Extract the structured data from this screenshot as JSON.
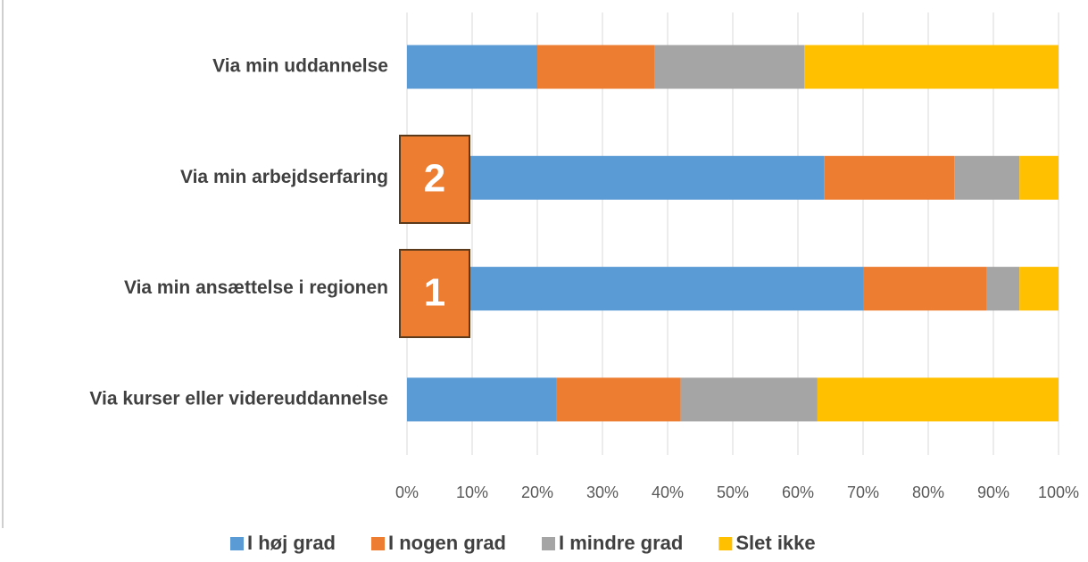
{
  "chart_data": {
    "type": "stacked-bar-horizontal",
    "categories": [
      "Via min uddannelse",
      "Via min arbejdserfaring",
      "Via min ansættelse i regionen",
      "Via kurser eller videreuddannelse"
    ],
    "series": [
      {
        "name": "I høj grad",
        "color": "#5B9BD5",
        "values": [
          20,
          64,
          70,
          23
        ]
      },
      {
        "name": "I nogen grad",
        "color": "#ED7D31",
        "values": [
          18,
          20,
          19,
          19
        ]
      },
      {
        "name": "I mindre grad",
        "color": "#A5A5A5",
        "values": [
          23,
          10,
          5,
          21
        ]
      },
      {
        "name": "Slet ikke",
        "color": "#FFC000",
        "values": [
          39,
          6,
          6,
          37
        ]
      }
    ],
    "xlim": [
      0,
      100
    ],
    "xticks": [
      {
        "value": 0,
        "label": "0%"
      },
      {
        "value": 10,
        "label": "10%"
      },
      {
        "value": 20,
        "label": "20%"
      },
      {
        "value": 30,
        "label": "30%"
      },
      {
        "value": 40,
        "label": "40%"
      },
      {
        "value": 50,
        "label": "50%"
      },
      {
        "value": 60,
        "label": "60%"
      },
      {
        "value": 70,
        "label": "70%"
      },
      {
        "value": 80,
        "label": "80%"
      },
      {
        "value": 90,
        "label": "90%"
      },
      {
        "value": 100,
        "label": "100%"
      }
    ],
    "grid": true,
    "legend": "bottom",
    "annotations": [
      "2",
      "1"
    ]
  }
}
